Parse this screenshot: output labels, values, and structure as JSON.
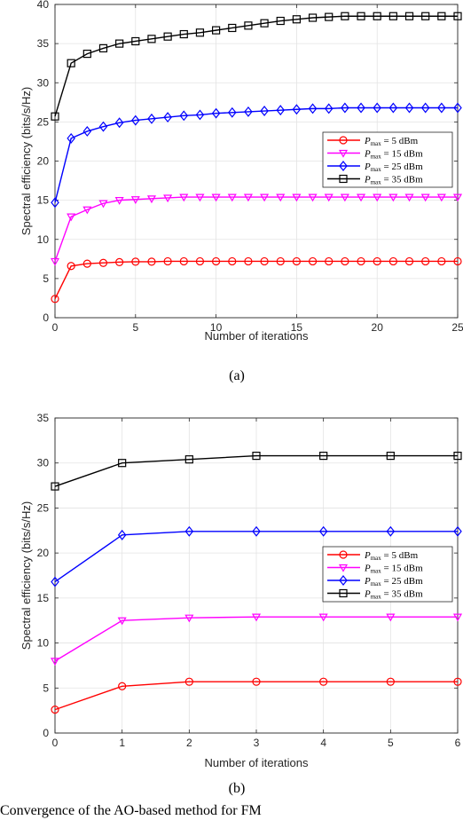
{
  "chart_data": [
    {
      "type": "line",
      "caption": "(a)",
      "xlabel": "Number of iterations",
      "ylabel": "Spectral efficiency (bits/s/Hz)",
      "xlim": [
        0,
        25
      ],
      "ylim": [
        0,
        40
      ],
      "xticks": [
        0,
        5,
        10,
        15,
        20,
        25
      ],
      "yticks": [
        0,
        5,
        10,
        15,
        20,
        25,
        30,
        35,
        40
      ],
      "grid": true,
      "legend_position": "center-right",
      "x": [
        0,
        1,
        2,
        3,
        4,
        5,
        6,
        7,
        8,
        9,
        10,
        11,
        12,
        13,
        14,
        15,
        16,
        17,
        18,
        19,
        20,
        21,
        22,
        23,
        24,
        25
      ],
      "series": [
        {
          "name": "P_max = 5 dBm",
          "label_main": "P",
          "label_sub": "max",
          "label_rest": " = 5 dBm",
          "color": "#ff0000",
          "marker": "circle",
          "values": [
            2.4,
            6.6,
            6.9,
            7.0,
            7.1,
            7.15,
            7.15,
            7.2,
            7.2,
            7.2,
            7.2,
            7.2,
            7.2,
            7.2,
            7.2,
            7.2,
            7.2,
            7.2,
            7.2,
            7.2,
            7.2,
            7.2,
            7.2,
            7.2,
            7.2,
            7.2
          ]
        },
        {
          "name": "P_max = 15 dBm",
          "label_main": "P",
          "label_sub": "max",
          "label_rest": " = 15 dBm",
          "color": "#ff00ff",
          "marker": "triangle-down",
          "values": [
            7.2,
            12.9,
            13.8,
            14.6,
            15.0,
            15.1,
            15.2,
            15.3,
            15.4,
            15.4,
            15.4,
            15.4,
            15.4,
            15.4,
            15.4,
            15.4,
            15.4,
            15.4,
            15.4,
            15.4,
            15.4,
            15.4,
            15.4,
            15.4,
            15.4,
            15.4
          ]
        },
        {
          "name": "P_max = 25 dBm",
          "label_main": "P",
          "label_sub": "max",
          "label_rest": " = 25 dBm",
          "color": "#0000ff",
          "marker": "diamond",
          "values": [
            14.7,
            22.9,
            23.8,
            24.4,
            24.9,
            25.2,
            25.4,
            25.6,
            25.8,
            25.9,
            26.1,
            26.2,
            26.3,
            26.4,
            26.5,
            26.6,
            26.7,
            26.7,
            26.8,
            26.8,
            26.8,
            26.8,
            26.8,
            26.8,
            26.8,
            26.8
          ]
        },
        {
          "name": "P_max = 35 dBm",
          "label_main": "P",
          "label_sub": "max",
          "label_rest": " = 35 dBm",
          "color": "#000000",
          "marker": "square",
          "values": [
            25.7,
            32.5,
            33.7,
            34.4,
            35.0,
            35.3,
            35.6,
            35.9,
            36.2,
            36.4,
            36.7,
            37.0,
            37.3,
            37.6,
            37.9,
            38.1,
            38.3,
            38.4,
            38.5,
            38.5,
            38.5,
            38.5,
            38.5,
            38.5,
            38.5,
            38.5
          ]
        }
      ]
    },
    {
      "type": "line",
      "caption": "(b)",
      "xlabel": "Number of iterations",
      "ylabel": "Spectral efficiency (bits/s/Hz)",
      "xlim": [
        0,
        6
      ],
      "ylim": [
        0,
        35
      ],
      "xticks": [
        0,
        1,
        2,
        3,
        4,
        5,
        6
      ],
      "yticks": [
        0,
        5,
        10,
        15,
        20,
        25,
        30,
        35
      ],
      "grid": true,
      "legend_position": "center-right",
      "x": [
        0,
        1,
        2,
        3,
        4,
        5,
        6
      ],
      "series": [
        {
          "name": "P_max = 5 dBm",
          "label_main": "P",
          "label_sub": "max",
          "label_rest": " = 5 dBm",
          "color": "#ff0000",
          "marker": "circle",
          "values": [
            2.6,
            5.2,
            5.7,
            5.7,
            5.7,
            5.7,
            5.7
          ]
        },
        {
          "name": "P_max = 15 dBm",
          "label_main": "P",
          "label_sub": "max",
          "label_rest": " = 15 dBm",
          "color": "#ff00ff",
          "marker": "triangle-down",
          "values": [
            8.0,
            12.5,
            12.8,
            12.9,
            12.9,
            12.9,
            12.9
          ]
        },
        {
          "name": "P_max = 25 dBm",
          "label_main": "P",
          "label_sub": "max",
          "label_rest": " = 25 dBm",
          "color": "#0000ff",
          "marker": "diamond",
          "values": [
            16.8,
            22.0,
            22.4,
            22.4,
            22.4,
            22.4,
            22.4
          ]
        },
        {
          "name": "P_max = 35 dBm",
          "label_main": "P",
          "label_sub": "max",
          "label_rest": " = 35 dBm",
          "color": "#000000",
          "marker": "square",
          "values": [
            27.4,
            30.0,
            30.4,
            30.8,
            30.8,
            30.8,
            30.8
          ]
        }
      ]
    }
  ],
  "footer_text": "Convergence of the AO-based method for FM"
}
